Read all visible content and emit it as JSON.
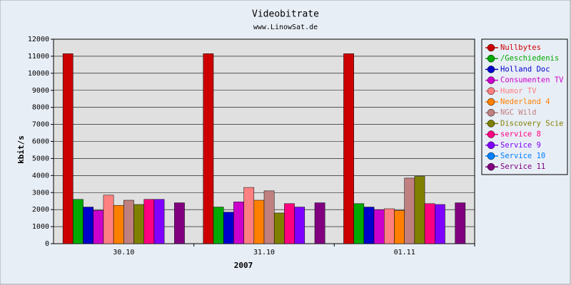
{
  "chart_data": {
    "type": "bar",
    "title": "Videobitrate",
    "subtitle": "www.LinowSat.de",
    "y_label": "kbit/s",
    "x_label": "2007",
    "categories": [
      "30.10",
      "31.10",
      "01.11"
    ],
    "series": [
      {
        "name": "Nullbytes",
        "color": "#cc0000",
        "values": [
          11150,
          11150,
          11150
        ]
      },
      {
        "name": "/Geschiedenis",
        "color": "#00aa00",
        "values": [
          2600,
          2150,
          2350
        ]
      },
      {
        "name": "Holland Doc",
        "color": "#0000cc",
        "values": [
          2150,
          1850,
          2150
        ]
      },
      {
        "name": "Consumenten TV",
        "color": "#cc00cc",
        "values": [
          1950,
          2450,
          2000
        ]
      },
      {
        "name": "Humor TV",
        "color": "#ff8080",
        "values": [
          2850,
          3300,
          2050
        ]
      },
      {
        "name": "Nederland 4",
        "color": "#ff8000",
        "values": [
          2250,
          2550,
          1950
        ]
      },
      {
        "name": "NGC Wild",
        "color": "#c08080",
        "values": [
          2550,
          3100,
          3850
        ]
      },
      {
        "name": "Discovery Scie",
        "color": "#808000",
        "values": [
          2300,
          1800,
          3950
        ]
      },
      {
        "name": "service 8",
        "color": "#ff0080",
        "values": [
          2600,
          2350,
          2350
        ]
      },
      {
        "name": "Service 9",
        "color": "#8000ff",
        "values": [
          2600,
          2150,
          2300
        ]
      },
      {
        "name": "Service 10",
        "color": "#0080ff",
        "values": [
          null,
          null,
          null
        ]
      },
      {
        "name": "Service 11",
        "color": "#800080",
        "values": [
          2400,
          2400,
          2400
        ]
      }
    ],
    "ylim": [
      0,
      12000
    ],
    "yticks": [
      0,
      1000,
      2000,
      3000,
      4000,
      5000,
      6000,
      7000,
      8000,
      9000,
      10000,
      11000,
      12000
    ],
    "grid": true,
    "legend": "right"
  }
}
